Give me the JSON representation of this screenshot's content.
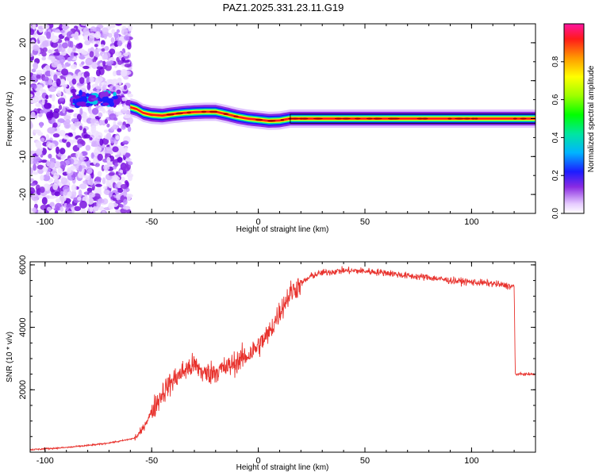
{
  "title": "PAZ1.2025.331.23.11.G19",
  "chart_data": [
    {
      "type": "heatmap",
      "name": "spectrogram",
      "xlabel": "Height of straight line (km)",
      "ylabel": "Frequency (Hz)",
      "xlim": [
        -107,
        130
      ],
      "ylim": [
        -25,
        25
      ],
      "xticks": [
        -100,
        -50,
        0,
        50,
        100
      ],
      "yticks": [
        -20,
        -10,
        0,
        10,
        20
      ],
      "colorbar": {
        "label": "Normalized spectral amplitude",
        "range": [
          0,
          1
        ],
        "ticks": [
          0.0,
          0.2,
          0.4,
          0.6,
          0.8
        ]
      },
      "ridge": {
        "description_values": "dominant frequency vs height",
        "x": [
          -60,
          -57,
          -54,
          -50,
          -45,
          -40,
          -35,
          -30,
          -25,
          -20,
          -15,
          -10,
          -5,
          0,
          5,
          10,
          15,
          20,
          40,
          60,
          80,
          100,
          120,
          130
        ],
        "y": [
          3,
          2.5,
          1.5,
          1,
          0.8,
          1.2,
          1.5,
          1.7,
          1.8,
          1.8,
          1.2,
          0.5,
          0,
          -0.3,
          -0.6,
          -0.5,
          0,
          0,
          0,
          0,
          0,
          0,
          0,
          0
        ]
      },
      "noise_region": {
        "x_range": [
          -107,
          -60
        ],
        "freq_range": [
          -25,
          25
        ]
      },
      "strong_band": {
        "x_range": [
          -87,
          -65
        ],
        "freq_center": 5
      }
    },
    {
      "type": "line",
      "name": "snr",
      "xlabel": "Height of straight line (km)",
      "ylabel": "SNR (10 * v/v)",
      "xlim": [
        -107,
        130
      ],
      "ylim": [
        0,
        6100
      ],
      "xticks": [
        -100,
        -50,
        0,
        50,
        100
      ],
      "yticks": [
        2000,
        4000,
        6000
      ],
      "color": "#e8322d",
      "series": [
        {
          "name": "SNR",
          "x": [
            -107,
            -90,
            -75,
            -65,
            -58,
            -55,
            -50,
            -45,
            -40,
            -35,
            -30,
            -25,
            -20,
            -15,
            -10,
            -5,
            0,
            5,
            10,
            15,
            20,
            25,
            30,
            40,
            50,
            60,
            70,
            80,
            90,
            100,
            110,
            120,
            120.5,
            125,
            130
          ],
          "y": [
            80,
            150,
            250,
            350,
            450,
            650,
            1300,
            1900,
            2300,
            2600,
            2800,
            2500,
            2600,
            2700,
            2900,
            3100,
            3400,
            3800,
            4500,
            5100,
            5400,
            5650,
            5750,
            5820,
            5800,
            5750,
            5650,
            5600,
            5500,
            5450,
            5400,
            5300,
            2500,
            2500,
            2500
          ]
        }
      ]
    }
  ]
}
